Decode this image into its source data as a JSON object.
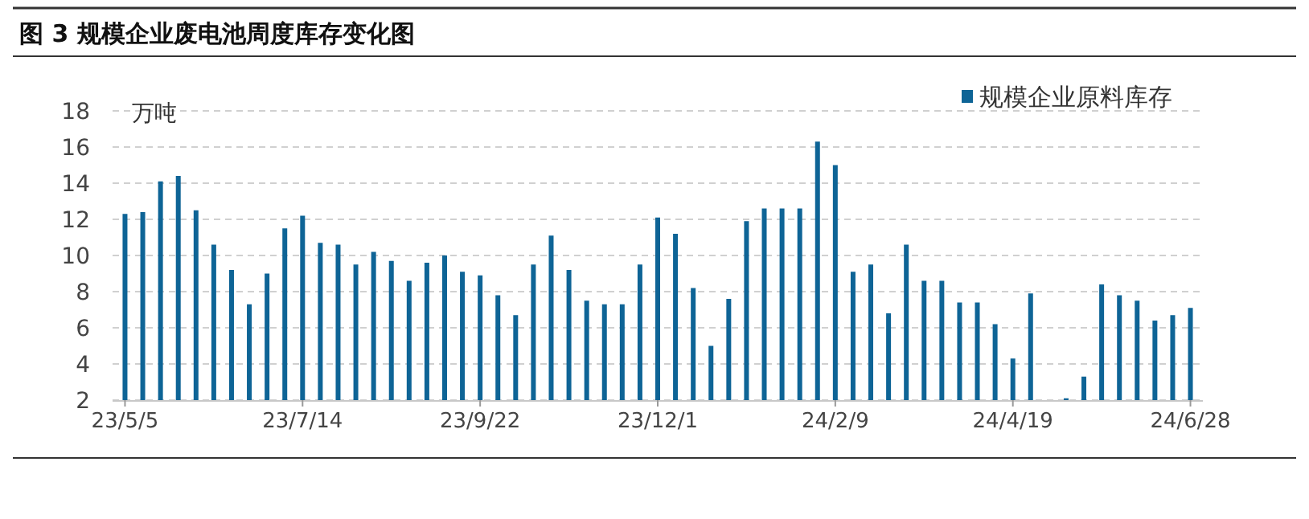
{
  "chart_data": {
    "type": "bar",
    "title": "图 3 规模企业废电池周度库存变化图",
    "ylabel": "万吨",
    "categories": [
      "23/5/5",
      null,
      null,
      null,
      null,
      null,
      null,
      null,
      null,
      null,
      "23/7/14",
      null,
      null,
      null,
      null,
      null,
      null,
      null,
      null,
      null,
      "23/9/22",
      null,
      null,
      null,
      null,
      null,
      null,
      null,
      null,
      null,
      "23/12/1",
      null,
      null,
      null,
      null,
      null,
      null,
      null,
      null,
      null,
      "24/2/9",
      null,
      null,
      null,
      null,
      null,
      null,
      null,
      null,
      null,
      "24/4/19",
      null,
      null,
      null,
      null,
      null,
      null,
      null,
      null,
      null,
      "24/6/28"
    ],
    "series": [
      {
        "name": "规模企业原料库存",
        "color": "#0e6496",
        "values": [
          12.3,
          12.4,
          14.1,
          14.4,
          12.5,
          10.6,
          9.2,
          7.3,
          9.0,
          11.5,
          12.2,
          10.7,
          10.6,
          9.5,
          10.2,
          9.7,
          8.6,
          9.6,
          10.0,
          9.1,
          8.9,
          7.8,
          6.7,
          9.5,
          11.1,
          9.2,
          7.5,
          7.3,
          7.3,
          9.5,
          12.1,
          11.2,
          8.2,
          5.0,
          7.6,
          11.9,
          12.6,
          12.6,
          12.6,
          16.3,
          15.0,
          9.1,
          9.5,
          6.8,
          10.6,
          8.6,
          8.6,
          7.4,
          7.4,
          6.2,
          4.3,
          7.9,
          null,
          2.1,
          3.3,
          8.4,
          7.8,
          7.5,
          6.4,
          6.7,
          7.1
        ]
      }
    ],
    "ylim": [
      2,
      18
    ],
    "yticks": [
      2,
      4,
      6,
      8,
      10,
      12,
      14,
      16,
      18
    ],
    "grid": "y",
    "legend": "top right"
  }
}
